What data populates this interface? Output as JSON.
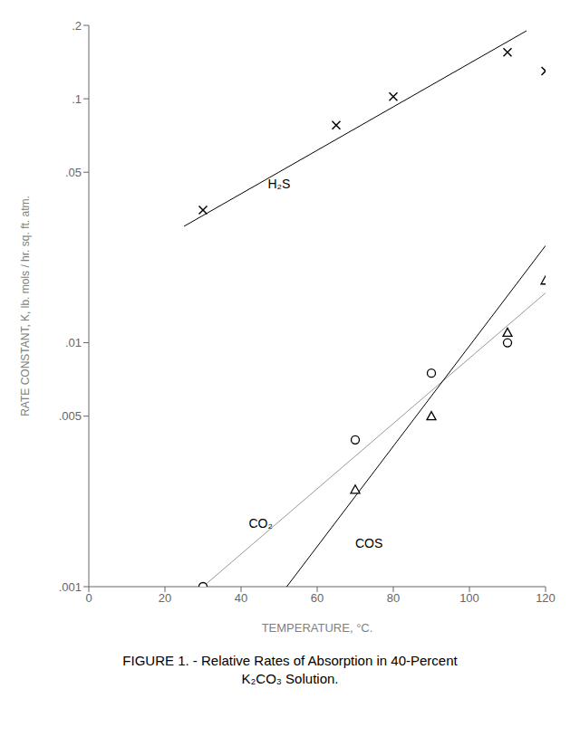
{
  "chart_data": {
    "type": "scatter",
    "title": "FIGURE 1. - Relative Rates of Absorption in 40-Percent\nK₂CO₃ Solution.",
    "xlabel": "TEMPERATURE, °C.",
    "ylabel": "RATE CONSTANT, K, lb. mols / hr. sq. ft. atm.",
    "log": "y",
    "grid": false,
    "xlim": [
      0,
      120
    ],
    "xticks": [
      0,
      20,
      40,
      60,
      80,
      100,
      120
    ],
    "ylim": [
      0.001,
      0.2
    ],
    "yticks": [
      {
        "value": 0.001,
        "label": ".001"
      },
      {
        "value": 0.005,
        "label": ".005"
      },
      {
        "value": 0.01,
        "label": ".01"
      },
      {
        "value": 0.05,
        "label": ".05"
      },
      {
        "value": 0.1,
        "label": ".1"
      },
      {
        "value": 0.2,
        "label": ".2"
      }
    ],
    "series": [
      {
        "type": "line",
        "color": "#000000",
        "x": [
          25,
          115
        ],
        "values": [
          0.03,
          0.19
        ]
      },
      {
        "type": "scatter",
        "marker": "x",
        "color": "#000000",
        "x": [
          30,
          65,
          80,
          110,
          120
        ],
        "values": [
          0.035,
          0.078,
          0.102,
          0.155,
          0.13
        ]
      },
      {
        "type": "line",
        "color": "#999999",
        "x": [
          30,
          120
        ],
        "values": [
          0.001,
          0.016
        ]
      },
      {
        "type": "scatter",
        "marker": "circle",
        "color": "#000000",
        "x": [
          30,
          70,
          90,
          110
        ],
        "values": [
          0.001,
          0.004,
          0.0075,
          0.01
        ]
      },
      {
        "type": "line",
        "color": "#000000",
        "x": [
          52,
          120
        ],
        "values": [
          0.001,
          0.025
        ]
      },
      {
        "type": "scatter",
        "marker": "triangle",
        "color": "#000000",
        "x": [
          70,
          90,
          110,
          120
        ],
        "values": [
          0.0025,
          0.005,
          0.011,
          0.018
        ]
      }
    ],
    "annotations": [
      {
        "text": "H₂S",
        "x": 47,
        "y": 0.043
      },
      {
        "text": "CO₂",
        "x": 42,
        "y": 0.00175
      },
      {
        "text": "COS",
        "x": 70,
        "y": 0.00145
      }
    ]
  }
}
